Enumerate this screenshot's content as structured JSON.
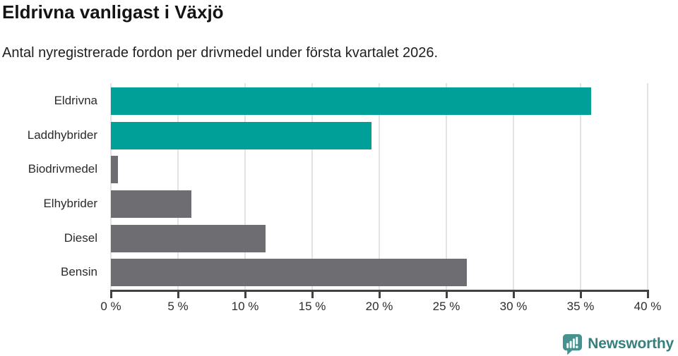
{
  "chart_data": {
    "type": "bar",
    "orientation": "horizontal",
    "title": "Eldrivna vanligast i Växjö",
    "subtitle": "Antal nyregistrerade fordon per drivmedel under första kvartalet 2026.",
    "categories": [
      "Eldrivna",
      "Laddhybrider",
      "Biodrivmedel",
      "Elhybrider",
      "Diesel",
      "Bensin"
    ],
    "values": [
      35.8,
      19.4,
      0.5,
      6.0,
      11.5,
      26.5
    ],
    "unit": "%",
    "xlim": [
      0,
      40
    ],
    "xticks": [
      0,
      5,
      10,
      15,
      20,
      25,
      30,
      35,
      40
    ],
    "tick_suffix": " %",
    "bar_colors": [
      "#00a099",
      "#00a099",
      "#6d6d72",
      "#6d6d72",
      "#6d6d72",
      "#6d6d72"
    ],
    "accent_color": "#00a099",
    "neutral_color": "#6d6d72",
    "grid": true,
    "gridline_color": "#e3e3e3",
    "axis_color": "#414141",
    "legend": "none"
  },
  "branding": {
    "label": "Newsworthy",
    "text_color": "#35807e",
    "icon_color": "#459290",
    "icon": "newsworthy-speech-bubble-chart-icon"
  }
}
